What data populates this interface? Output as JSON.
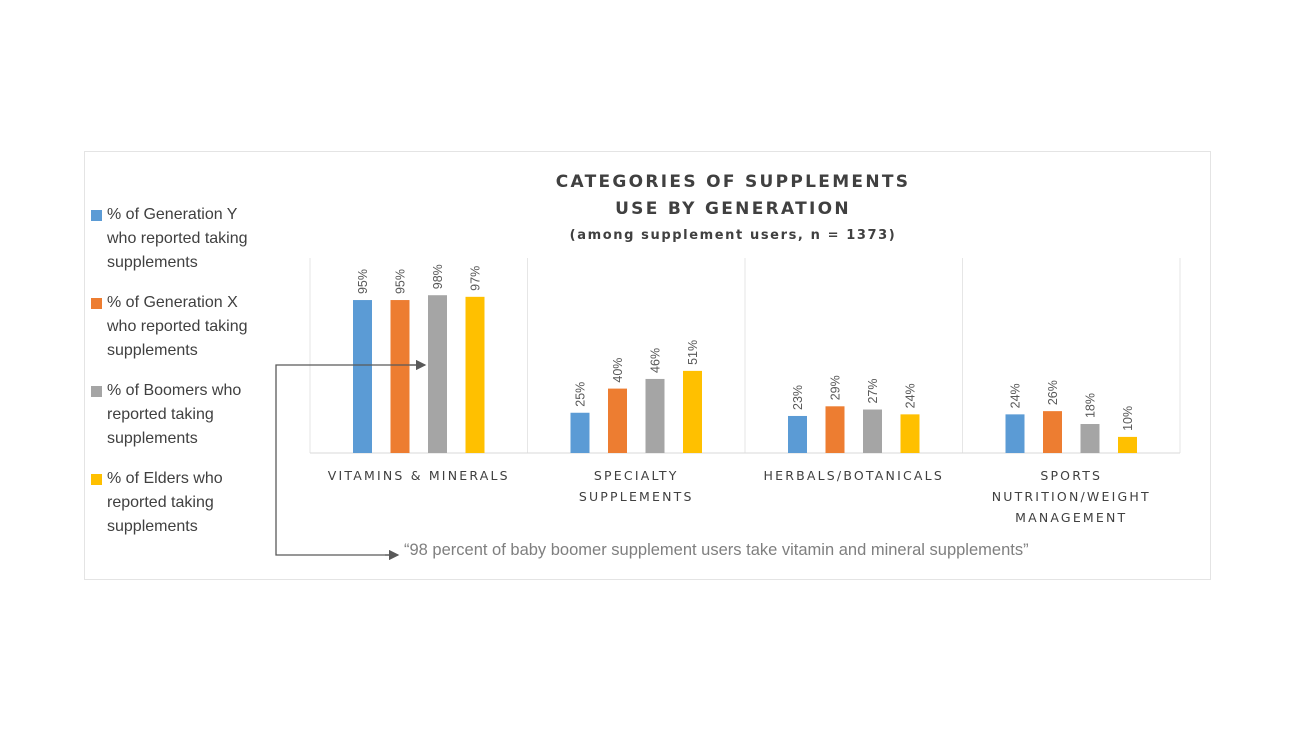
{
  "chart_data": {
    "type": "bar",
    "title": "CATEGORIES OF SUPPLEMENTS USE BY GENERATION",
    "title_lines": [
      "CATEGORIES OF SUPPLEMENTS",
      "USE BY GENERATION"
    ],
    "subtitle": "(among supplement users, n = 1373)",
    "categories": [
      "VITAMINS & MINERALS",
      "SPECIALTY SUPPLEMENTS",
      "HERBALS/BOTANICALS",
      "SPORTS NUTRITION/WEIGHT MANAGEMENT"
    ],
    "category_lines": [
      [
        "VITAMINS & MINERALS"
      ],
      [
        "SPECIALTY",
        "SUPPLEMENTS"
      ],
      [
        "HERBALS/BOTANICALS"
      ],
      [
        "SPORTS",
        "NUTRITION/WEIGHT",
        "MANAGEMENT"
      ]
    ],
    "series": [
      {
        "name": "% of Generation Y who reported taking supplements",
        "name_lines": [
          "% of Generation Y",
          "who reported taking",
          "supplements"
        ],
        "color": "#5B9BD5",
        "values": [
          95,
          25,
          23,
          24
        ]
      },
      {
        "name": "% of Generation X who reported taking supplements",
        "name_lines": [
          "% of Generation X",
          "who reported taking",
          "supplements"
        ],
        "color": "#ED7D31",
        "values": [
          95,
          40,
          29,
          26
        ]
      },
      {
        "name": "% of Boomers who reported taking supplements",
        "name_lines": [
          "% of Boomers who",
          "reported taking",
          "supplements"
        ],
        "color": "#A5A5A5",
        "values": [
          98,
          46,
          27,
          18
        ]
      },
      {
        "name": "% of Elders who reported taking supplements",
        "name_lines": [
          "% of Elders who",
          "reported taking",
          "supplements"
        ],
        "color": "#FFC000",
        "values": [
          97,
          51,
          24,
          10
        ]
      }
    ],
    "value_suffix": "%",
    "ylim": [
      0,
      100
    ],
    "xlabel": "",
    "ylabel": "",
    "grid": false,
    "legend_position": "left",
    "annotation": "“98 percent of baby boomer supplement users take vitamin and mineral supplements”"
  }
}
